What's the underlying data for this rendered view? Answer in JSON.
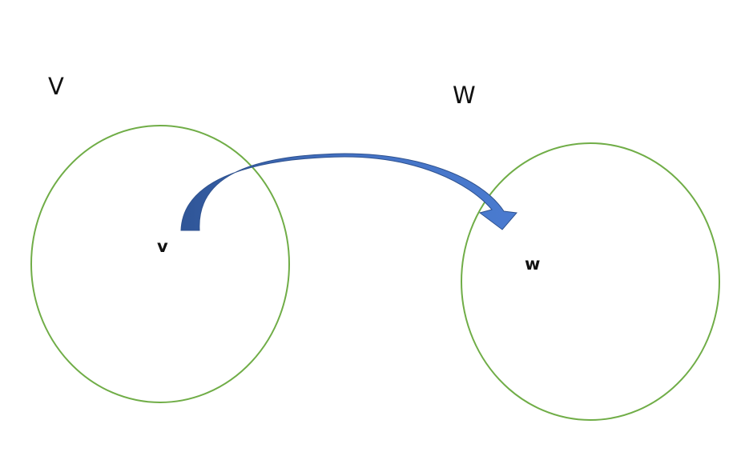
{
  "labels": {
    "domain_set": "V",
    "codomain_set": "W",
    "domain_element": "v",
    "codomain_element": "w"
  },
  "colors": {
    "set_outline": "#70ad47",
    "arrow_fill": "#4472c4",
    "arrow_dark": "#2f528f",
    "text": "#111111"
  }
}
